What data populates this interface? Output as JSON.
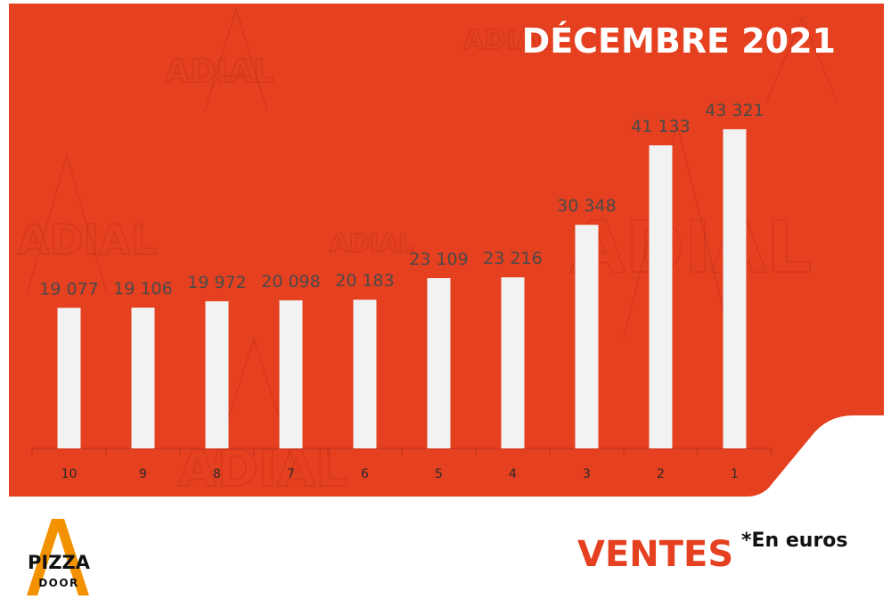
{
  "colors": {
    "panel": "#e5401f",
    "bar": "#f2f2f2",
    "accent": "#f39200"
  },
  "watermark": "ADIAL",
  "logo": {
    "line1": "PIZZA",
    "line2": "DOOR"
  },
  "footer": {
    "label": "VENTES",
    "note": "*En euros"
  },
  "chart_data": {
    "type": "bar",
    "title": "DÉCEMBRE 2021",
    "categories": [
      "10",
      "9",
      "8",
      "7",
      "6",
      "5",
      "4",
      "3",
      "2",
      "1"
    ],
    "values": [
      19077,
      19106,
      19972,
      20098,
      20183,
      23109,
      23216,
      30348,
      41133,
      43321
    ],
    "value_labels": [
      "19 077",
      "19 106",
      "19 972",
      "20 098",
      "20 183",
      "23 109",
      "23 216",
      "30 348",
      "41 133",
      "43 321"
    ],
    "ylim": [
      0,
      49000
    ],
    "grid": false,
    "legend": "none"
  }
}
